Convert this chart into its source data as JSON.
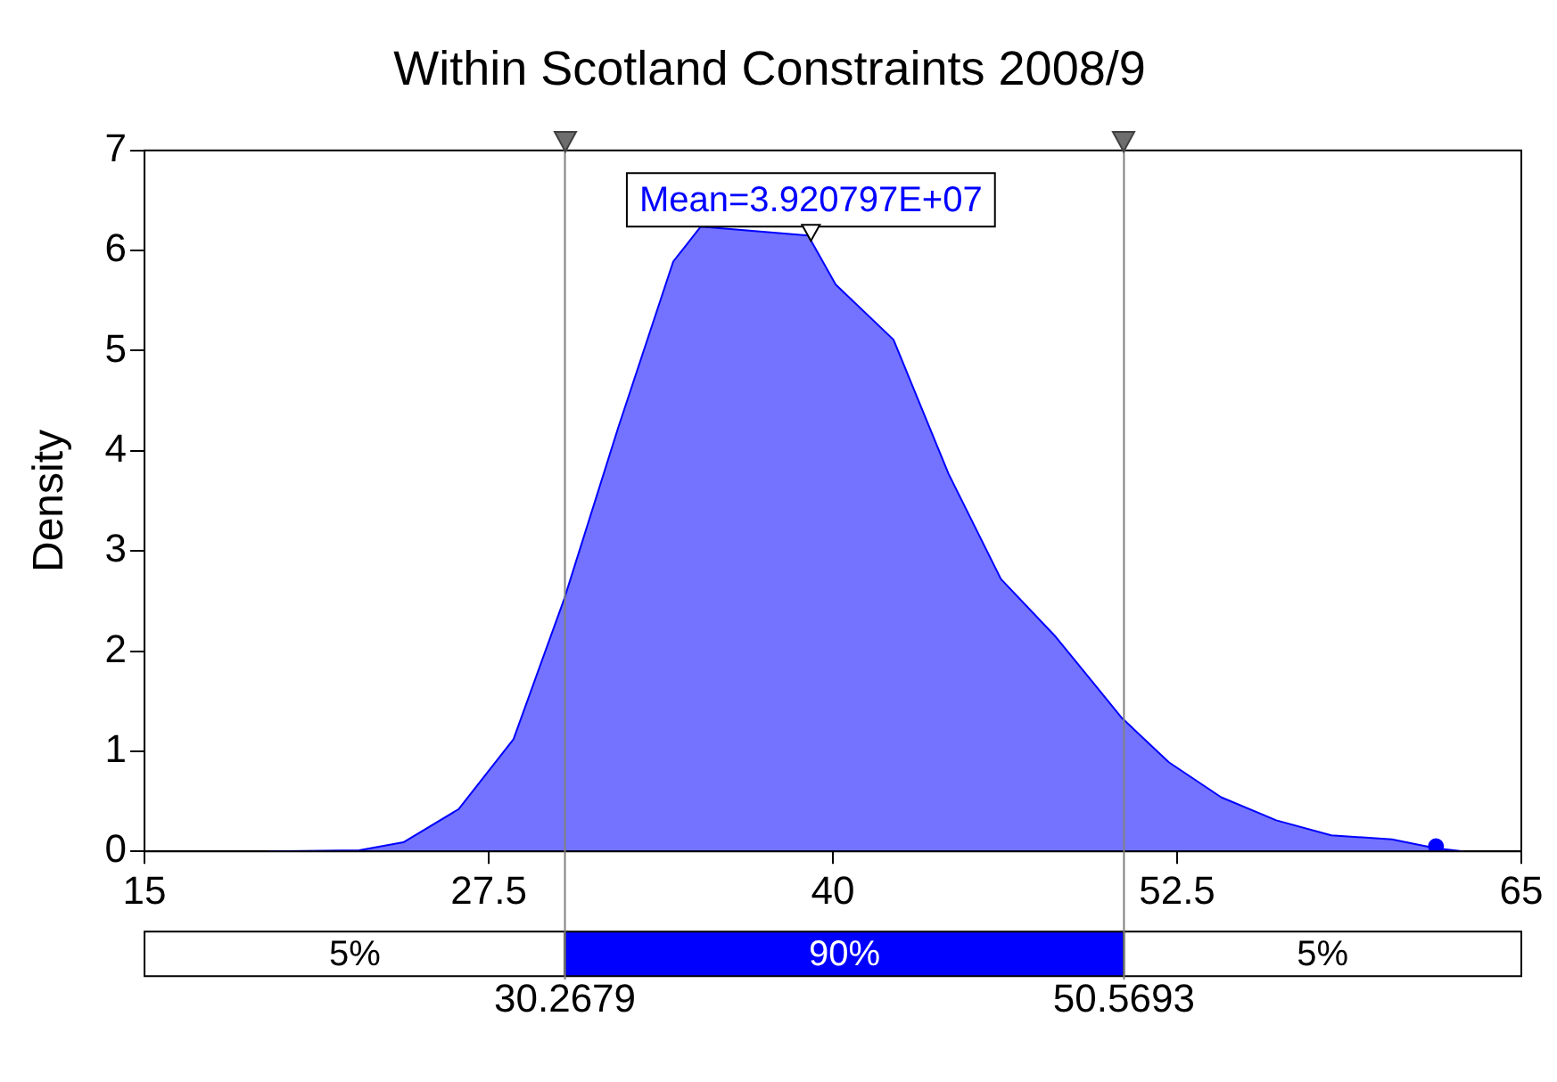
{
  "chart_data": {
    "type": "area",
    "title": "Within Scotland Constraints 2008/9",
    "ylabel": "Density",
    "series": [
      {
        "color": "#0000ff",
        "x": [
          19.5,
          22.8,
          24.4,
          26.4,
          28.4,
          30.24,
          32.2,
          34.2,
          35.2,
          39.1,
          40.1,
          42.2,
          44.2,
          46.1,
          48.1,
          50.5,
          52.2,
          54.1,
          56.1,
          58.1,
          60.3,
          61.9,
          62.9
        ],
        "values": [
          0,
          0.01,
          0.09,
          0.42,
          1.12,
          2.52,
          4.23,
          5.89,
          6.24,
          6.15,
          5.66,
          5.11,
          3.77,
          2.72,
          2.14,
          1.33,
          0.89,
          0.54,
          0.31,
          0.16,
          0.12,
          0.03,
          0
        ]
      },
      {
        "type": "scatter",
        "marker": "circle",
        "color": "#0000ff",
        "x": [
          61.9
        ],
        "values": [
          0.05
        ]
      }
    ],
    "xlim": [
      15,
      65
    ],
    "xticks": [
      15,
      27.5,
      40,
      52.5,
      65
    ],
    "ylim": [
      0,
      7
    ],
    "yticks": [
      0,
      1,
      2,
      3,
      4,
      5,
      6,
      7
    ],
    "grid": false,
    "legend": false,
    "ref_lines": [
      {
        "axis": "x",
        "value": 30.2679,
        "label": "30.2679",
        "color": "#808080"
      },
      {
        "axis": "x",
        "value": 50.5693,
        "label": "50.5693",
        "color": "#808080"
      }
    ],
    "annotations": [
      {
        "text": "Mean=3.920797E+07",
        "x": 39.2,
        "y": 6.24
      },
      "5%",
      "90%",
      "5%"
    ]
  }
}
